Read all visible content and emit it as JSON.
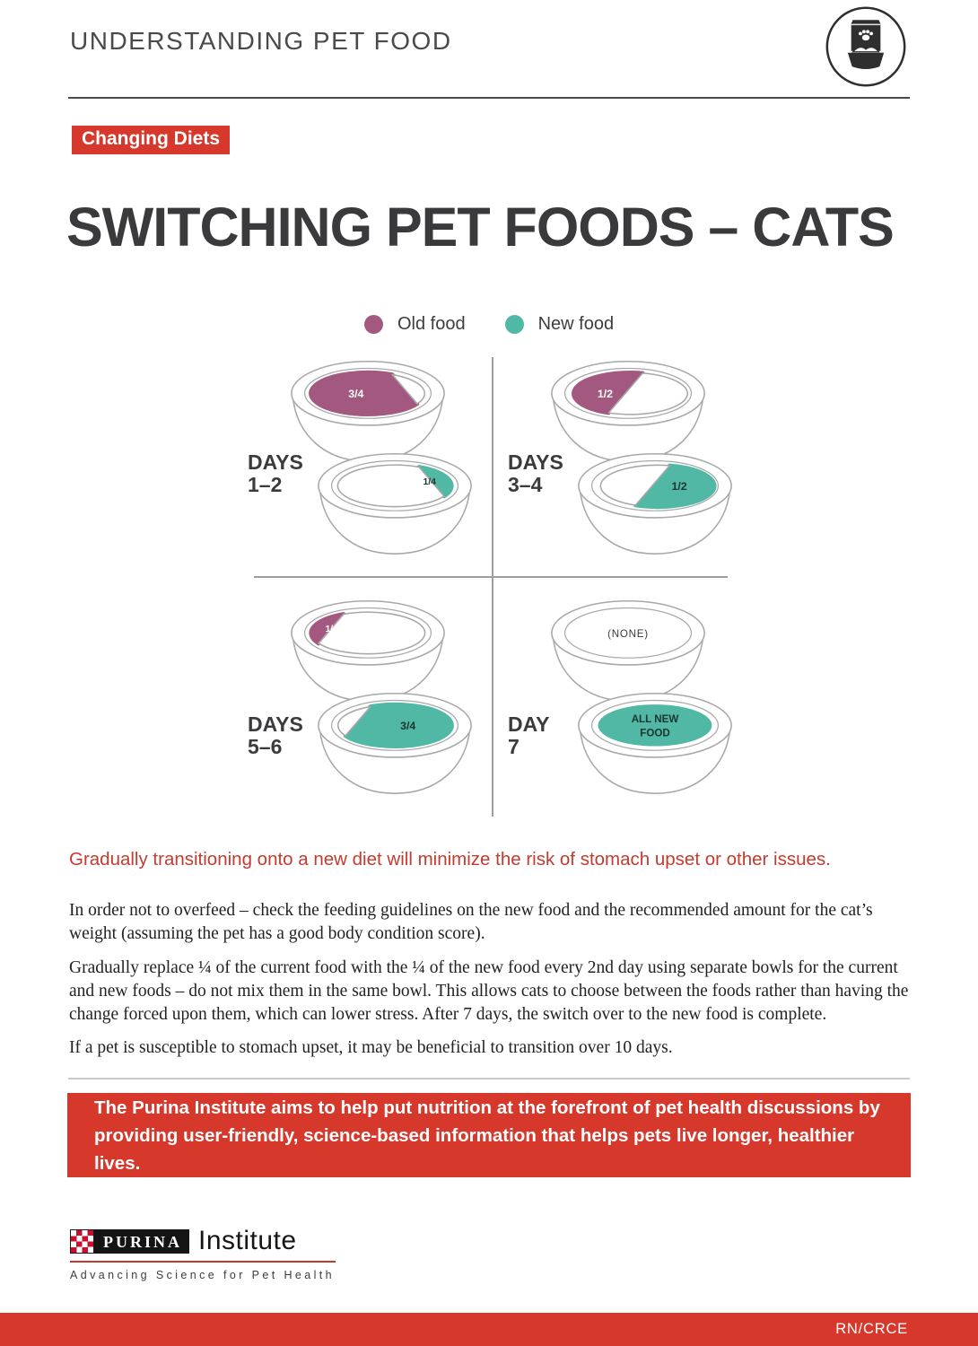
{
  "header": {
    "title": "UNDERSTANDING PET FOOD",
    "icon": "pet-food-bag-and-bowl-icon"
  },
  "badge": {
    "label": "Changing Diets"
  },
  "title": "SWITCHING PET FOODS – CATS",
  "legend": [
    {
      "label": "Old food",
      "color": "#a3597f"
    },
    {
      "label": "New food",
      "color": "#50b8a4"
    }
  ],
  "chart_data": {
    "type": "diagram",
    "description": "7-day cat food transition schedule using two separate bowls",
    "quadrants": [
      {
        "label": "DAYS",
        "range": "1–2",
        "bowls": [
          {
            "food": "old",
            "portion": "3/4",
            "shape": "left-34"
          },
          {
            "food": "new",
            "portion": "1/4",
            "shape": "right-14"
          }
        ]
      },
      {
        "label": "DAYS",
        "range": "3–4",
        "bowls": [
          {
            "food": "old",
            "portion": "1/2",
            "shape": "left-12"
          },
          {
            "food": "new",
            "portion": "1/2",
            "shape": "right-12"
          }
        ]
      },
      {
        "label": "DAYS",
        "range": "5–6",
        "bowls": [
          {
            "food": "old",
            "portion": "1/4",
            "shape": "left-14"
          },
          {
            "food": "new",
            "portion": "3/4",
            "shape": "right-34"
          }
        ]
      },
      {
        "label": "DAY",
        "range": "7",
        "bowls": [
          {
            "food": "none",
            "portion": "(NONE)",
            "shape": "none"
          },
          {
            "food": "new",
            "portion": "ALL NEW\nFOOD",
            "shape": "full"
          }
        ]
      }
    ]
  },
  "callout": "Gradually transitioning onto a new diet will minimize the risk of stomach upset or other issues.",
  "paragraphs": [
    "In order not to overfeed – check the feeding guidelines on the new food and the recommended amount for the cat’s weight (assuming the pet has a good body condition score).",
    "Gradually replace ¼ of the current food with the ¼ of the new food every 2nd day using separate bowls for the current and new foods – do not mix them in the same bowl. This allows cats to choose between the foods rather than having the change forced upon them, which can lower stress. After 7 days, the switch over to the new food is complete.",
    "If a pet is susceptible to stomach upset, it may be beneficial to transition over 10 days."
  ],
  "banner": {
    "text": "The Purina Institute aims to help put nutrition at the forefront of pet health discussions by providing user-friendly, science-based information that helps pets live longer, healthier lives."
  },
  "logo": {
    "brand": "PURINA",
    "name": "Institute",
    "tagline": "Advancing Science for Pet Health",
    "checkerboard_icon": "purina-checkerboard-icon"
  },
  "footer": {
    "code": "RN/CRCE"
  },
  "colors": {
    "accent_red": "#d7382c",
    "callout_red": "#c43b2e",
    "old_food": "#a3597f",
    "new_food": "#50b8a4",
    "bowl_stroke": "#a8a8a8",
    "label_on_old": "#ffffff",
    "label_on_new": "#1c3531"
  }
}
